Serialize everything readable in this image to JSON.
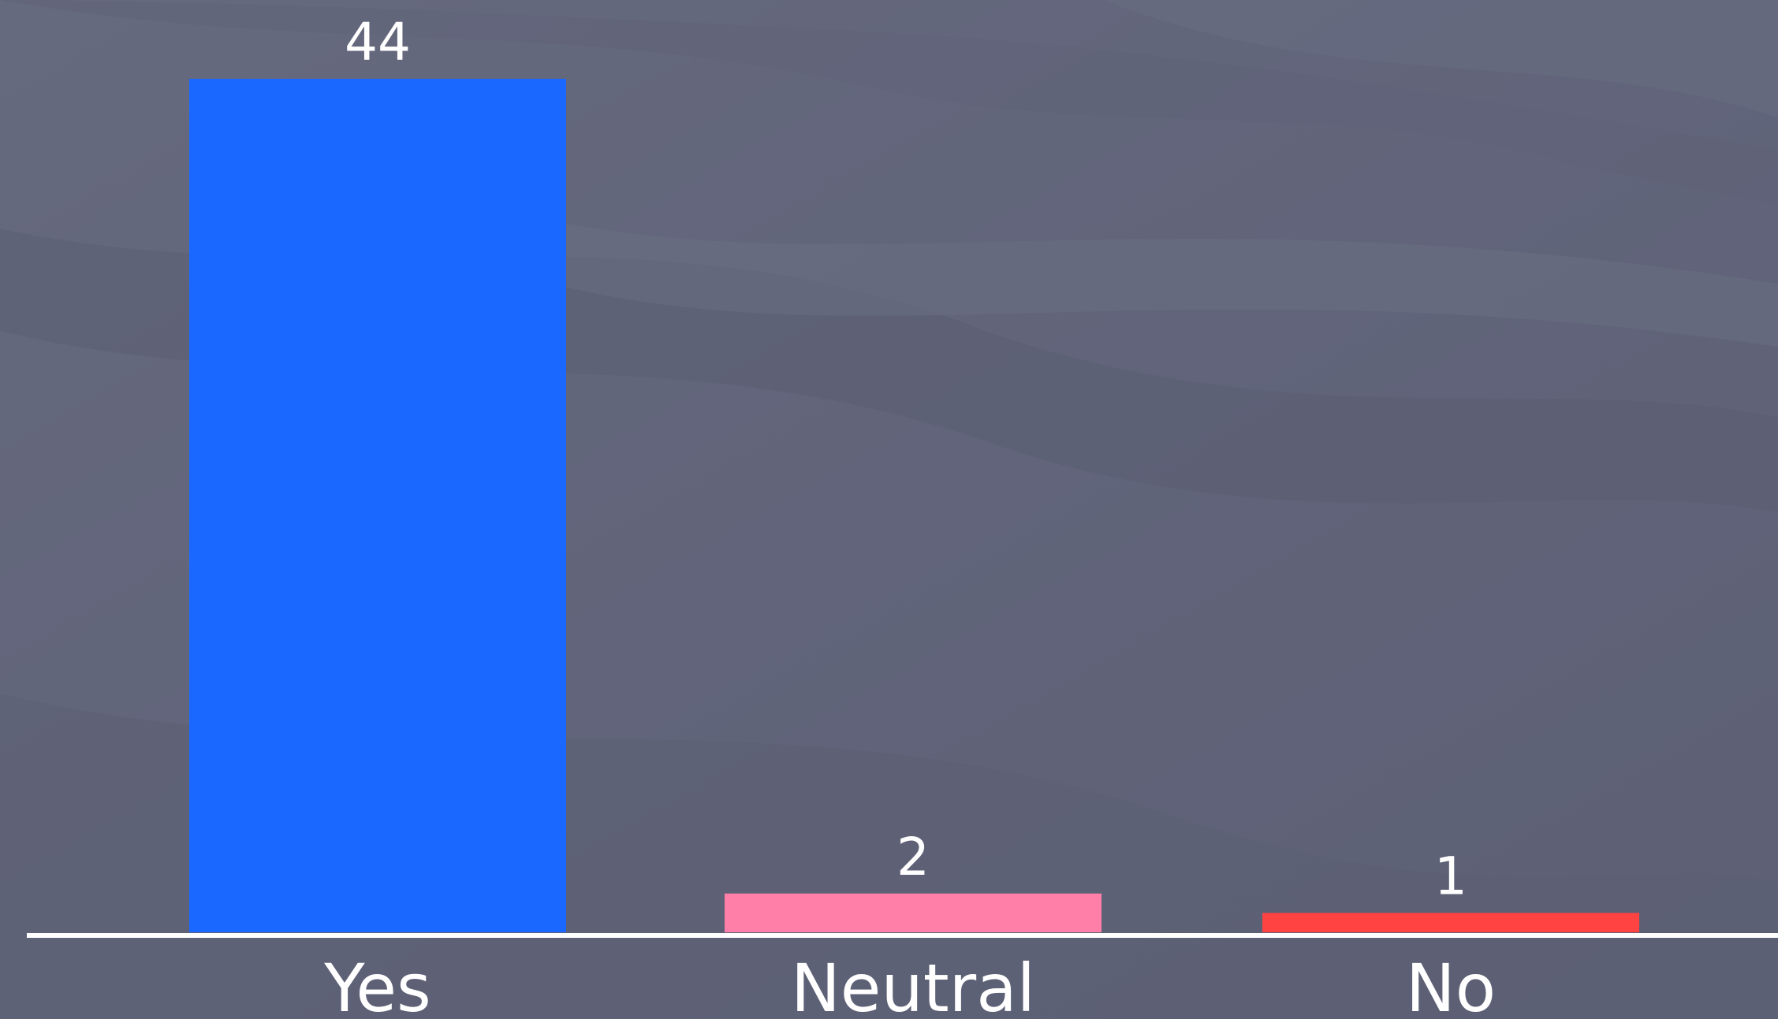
{
  "chart_data": {
    "type": "bar",
    "categories": [
      "Yes",
      "Neutral",
      "No"
    ],
    "values": [
      44,
      2,
      1
    ],
    "colors": [
      "#1a68ff",
      "#ff7fa9",
      "#ff4342"
    ],
    "title": "",
    "xlabel": "",
    "ylabel": "",
    "ylim": [
      0,
      44
    ],
    "grid": false,
    "legend": "none",
    "value_labels": true
  },
  "theme": {
    "background": "#63667a",
    "axis_color": "#ffffff",
    "text_color": "#ffffff"
  }
}
